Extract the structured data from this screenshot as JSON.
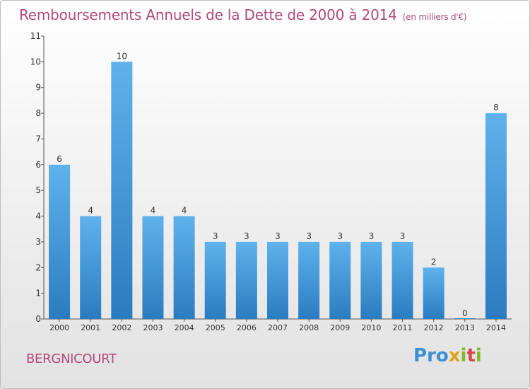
{
  "title": "Remboursements Annuels de la Dette de 2000 à 2014",
  "unit": "(en milliers d'€)",
  "commune": "BERGNICOURT",
  "logo": {
    "p1": "Pro",
    "p2": "x",
    "p3": "i",
    "p4": "t",
    "p5": "i"
  },
  "colors": {
    "bar": "#3a8fd4",
    "bar_light": "#5aaee9",
    "text": "#b04a7a",
    "axis": "#444444"
  },
  "chart_data": {
    "type": "bar",
    "categories": [
      "2000",
      "2001",
      "2002",
      "2003",
      "2004",
      "2005",
      "2006",
      "2007",
      "2008",
      "2009",
      "2010",
      "2011",
      "2012",
      "2013",
      "2014"
    ],
    "values": [
      6,
      4,
      10,
      4,
      4,
      3,
      3,
      3,
      3,
      3,
      3,
      3,
      2,
      0,
      8
    ],
    "yticks": [
      0,
      1,
      2,
      3,
      4,
      5,
      6,
      7,
      8,
      9,
      10,
      11
    ],
    "ylim": [
      0,
      11
    ],
    "title": "Remboursements Annuels de la Dette de 2000 à 2014",
    "xlabel": "",
    "ylabel": "",
    "grid": false
  }
}
